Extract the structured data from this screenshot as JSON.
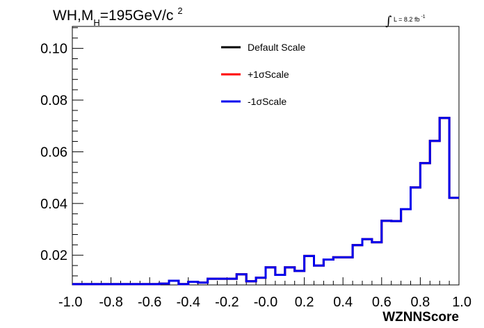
{
  "chart_data": {
    "type": "line",
    "title_parts": {
      "main": "WH,M",
      "sub": "H",
      "after": "=195GeV/c",
      "sup": "2"
    },
    "lumi_label": "L = 8.2 fb",
    "lumi_sup": "-1",
    "lumi_integral": "∫",
    "xlabel": "WZNNScore",
    "ylabel": "",
    "xlim": [
      -1.0,
      1.0
    ],
    "ylim": [
      0.0085,
      0.1085
    ],
    "x_tick_labels": [
      "-1.0",
      "-0.8",
      "-0.6",
      "-0.4",
      "-0.2",
      "-0.0",
      "0.2",
      "0.4",
      "0.6",
      "0.8",
      "1.0"
    ],
    "x_tick_values": [
      -1.0,
      -0.8,
      -0.6,
      -0.4,
      -0.2,
      0.0,
      0.2,
      0.4,
      0.6,
      0.8,
      1.0
    ],
    "y_tick_labels": [
      "0.02",
      "0.04",
      "0.06",
      "0.08",
      "0.10"
    ],
    "y_tick_values": [
      0.02,
      0.04,
      0.06,
      0.08,
      0.1
    ],
    "bin_edges": [
      -1.0,
      -0.95,
      -0.9,
      -0.85,
      -0.8,
      -0.75,
      -0.7,
      -0.65,
      -0.6,
      -0.55,
      -0.5,
      -0.45,
      -0.4,
      -0.35,
      -0.3,
      -0.25,
      -0.2,
      -0.15,
      -0.1,
      -0.05,
      0.0,
      0.05,
      0.1,
      0.15,
      0.2,
      0.25,
      0.3,
      0.35,
      0.4,
      0.45,
      0.5,
      0.55,
      0.6,
      0.65,
      0.7,
      0.75,
      0.8,
      0.85,
      0.9,
      0.95,
      1.0
    ],
    "series": [
      {
        "name": "Default Scale",
        "color": "#000000",
        "values": [
          0.0088,
          0.0088,
          0.0088,
          0.0088,
          0.0088,
          0.0088,
          0.0088,
          0.0088,
          0.0088,
          0.009,
          0.0101,
          0.0088,
          0.0097,
          0.0094,
          0.0109,
          0.0109,
          0.0109,
          0.0126,
          0.0099,
          0.0113,
          0.0153,
          0.0124,
          0.0153,
          0.0139,
          0.0197,
          0.016,
          0.0183,
          0.0192,
          0.0192,
          0.0239,
          0.0262,
          0.025,
          0.0333,
          0.0332,
          0.0378,
          0.0462,
          0.0556,
          0.0642,
          0.0731,
          0.0422
        ]
      },
      {
        "name": "+1σScale",
        "color": "#ff0000",
        "values": [
          0.0088,
          0.0088,
          0.0088,
          0.0088,
          0.0088,
          0.0088,
          0.0088,
          0.0088,
          0.0088,
          0.009,
          0.0101,
          0.0088,
          0.0097,
          0.0094,
          0.0109,
          0.0109,
          0.0109,
          0.0126,
          0.0099,
          0.0113,
          0.0153,
          0.0124,
          0.0153,
          0.0139,
          0.0197,
          0.016,
          0.0183,
          0.0192,
          0.0192,
          0.0239,
          0.0262,
          0.025,
          0.0333,
          0.0332,
          0.0378,
          0.0462,
          0.0556,
          0.0642,
          0.0731,
          0.0422
        ]
      },
      {
        "name": "-1σScale",
        "color": "#0000ee",
        "values": [
          0.0088,
          0.0088,
          0.0088,
          0.0088,
          0.0088,
          0.0088,
          0.0088,
          0.0088,
          0.0088,
          0.009,
          0.0101,
          0.0088,
          0.0097,
          0.0094,
          0.0109,
          0.0109,
          0.0109,
          0.0126,
          0.0099,
          0.0113,
          0.0153,
          0.0124,
          0.0153,
          0.0139,
          0.0197,
          0.016,
          0.0183,
          0.0192,
          0.0192,
          0.0239,
          0.0262,
          0.025,
          0.0333,
          0.0332,
          0.0378,
          0.0462,
          0.0556,
          0.0642,
          0.0731,
          0.0422
        ]
      }
    ],
    "legend_position": "top-center",
    "grid": false
  }
}
